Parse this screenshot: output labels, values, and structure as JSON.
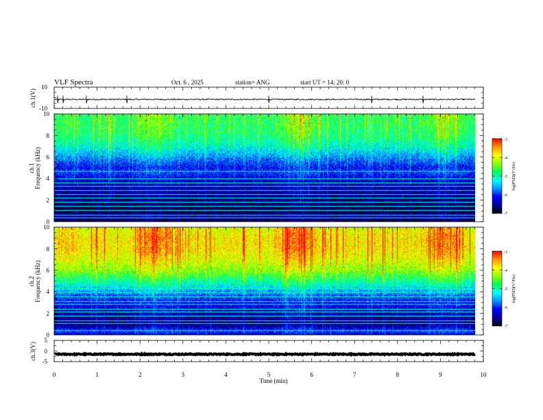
{
  "header": {
    "title": "VLF Spectra",
    "date": "Oct. 6 , 2025",
    "station": "station= ANG",
    "start_ut": "start UT = 14: 20: 0"
  },
  "chart_data": [
    {
      "type": "line",
      "panel": "ch1-waveform",
      "ylabel": "ch.1(V)",
      "ylim": [
        -10,
        10
      ],
      "y_ticks": [
        "10",
        "-10"
      ],
      "baseline": -1.5,
      "noise_amplitude": 0.6,
      "spikes_at_min": [
        0.08,
        0.2,
        0.75,
        1.7,
        5.0,
        7.4,
        8.6
      ]
    },
    {
      "type": "heatmap",
      "panel": "ch1-spectrogram",
      "ylabel_line1": "ch.1",
      "ylabel_line2": "Frequency (kHz)",
      "ylim": [
        0,
        10
      ],
      "y_ticks": [
        "0",
        "2",
        "4",
        "6",
        "8",
        "10"
      ],
      "colorbar": {
        "label": "log(PSD)(V²/Hz)",
        "range": [
          -7,
          -3
        ],
        "ticks": [
          "-3",
          "-4",
          "-5",
          "-6",
          "-7"
        ]
      },
      "profile_kHz_vs_log10PSD": [
        [
          0,
          -6.9
        ],
        [
          0.4,
          -6.5
        ],
        [
          1,
          -6.8
        ],
        [
          2,
          -6.6
        ],
        [
          3,
          -6.5
        ],
        [
          4,
          -6.3
        ],
        [
          4.6,
          -6.0
        ],
        [
          5,
          -6.2
        ],
        [
          6,
          -5.7
        ],
        [
          7,
          -5.2
        ],
        [
          8,
          -4.9
        ],
        [
          9,
          -4.8
        ],
        [
          10,
          -4.8
        ]
      ],
      "narrowband_lines_kHz": [
        0.3,
        0.55,
        1.0,
        1.4,
        1.8,
        2.2,
        2.5,
        2.9,
        3.3,
        3.6,
        4.0,
        4.7
      ],
      "sferic_intensity": 0.8
    },
    {
      "type": "heatmap",
      "panel": "ch2-spectrogram",
      "ylabel_line1": "ch.2",
      "ylabel_line2": "Frequency (kHz)",
      "ylim": [
        0,
        10
      ],
      "y_ticks": [
        "0",
        "2",
        "4",
        "6",
        "8",
        "10"
      ],
      "colorbar": {
        "label": "log(PSD)(V²/Hz)",
        "range": [
          -7,
          -3
        ],
        "ticks": [
          "-3",
          "-4",
          "-5",
          "-6",
          "-7"
        ]
      },
      "profile_kHz_vs_log10PSD": [
        [
          0,
          -6.4
        ],
        [
          0.3,
          -6.0
        ],
        [
          1,
          -6.7
        ],
        [
          2,
          -6.4
        ],
        [
          3,
          -6.2
        ],
        [
          3.8,
          -5.8
        ],
        [
          4.5,
          -5.3
        ],
        [
          5,
          -5.0
        ],
        [
          6,
          -4.4
        ],
        [
          7,
          -4.1
        ],
        [
          8,
          -3.9
        ],
        [
          9,
          -3.9
        ],
        [
          10,
          -4.1
        ]
      ],
      "narrowband_lines_kHz": [
        0.4,
        1.0,
        1.3,
        1.7,
        2.1,
        2.4,
        2.8,
        3.1,
        3.5,
        3.9,
        4.3
      ],
      "sferic_intensity": 1.1
    },
    {
      "type": "line",
      "panel": "ch3-waveform",
      "ylabel": "ch.3(V)",
      "ylim": [
        -5,
        5
      ],
      "y_ticks": [
        "5",
        "0",
        "-5"
      ],
      "baseline": -1.5,
      "noise_amplitude": 0.25
    }
  ],
  "x_axis": {
    "label": "Time (min)",
    "range": [
      0,
      10
    ],
    "ticks": [
      "0",
      "1",
      "2",
      "3",
      "4",
      "5",
      "6",
      "7",
      "8",
      "9",
      "10"
    ],
    "data_end_min": 9.82
  },
  "colormap": [
    "#000000",
    "#00009a",
    "#0000ff",
    "#0096ff",
    "#00ffff",
    "#00ff5a",
    "#8cff00",
    "#ffff00",
    "#ff9600",
    "#ff0000",
    "#ffffff"
  ]
}
